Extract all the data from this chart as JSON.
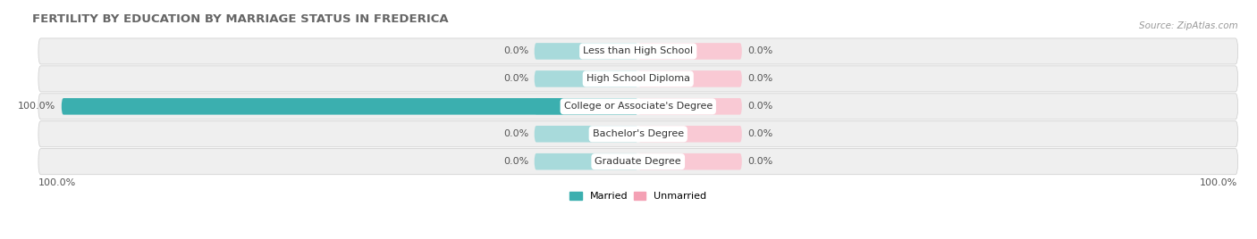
{
  "title": "FERTILITY BY EDUCATION BY MARRIAGE STATUS IN FREDERICA",
  "source": "Source: ZipAtlas.com",
  "categories": [
    "Less than High School",
    "High School Diploma",
    "College or Associate's Degree",
    "Bachelor's Degree",
    "Graduate Degree"
  ],
  "married_values": [
    0.0,
    0.0,
    100.0,
    0.0,
    0.0
  ],
  "unmarried_values": [
    0.0,
    0.0,
    0.0,
    0.0,
    0.0
  ],
  "married_color": "#3BAFAF",
  "unmarried_color": "#F4A0B4",
  "married_bg_color": "#A8DADB",
  "unmarried_bg_color": "#F9C9D4",
  "row_bg_color": "#EFEFEF",
  "bar_height": 0.6,
  "bg_bar_width": 18,
  "legend_married": "Married",
  "legend_unmarried": "Unmarried",
  "title_fontsize": 9.5,
  "source_fontsize": 7.5,
  "label_fontsize": 8,
  "category_fontsize": 8,
  "tick_fontsize": 8,
  "bottom_tick_left": "100.0%",
  "bottom_tick_right": "100.0%"
}
